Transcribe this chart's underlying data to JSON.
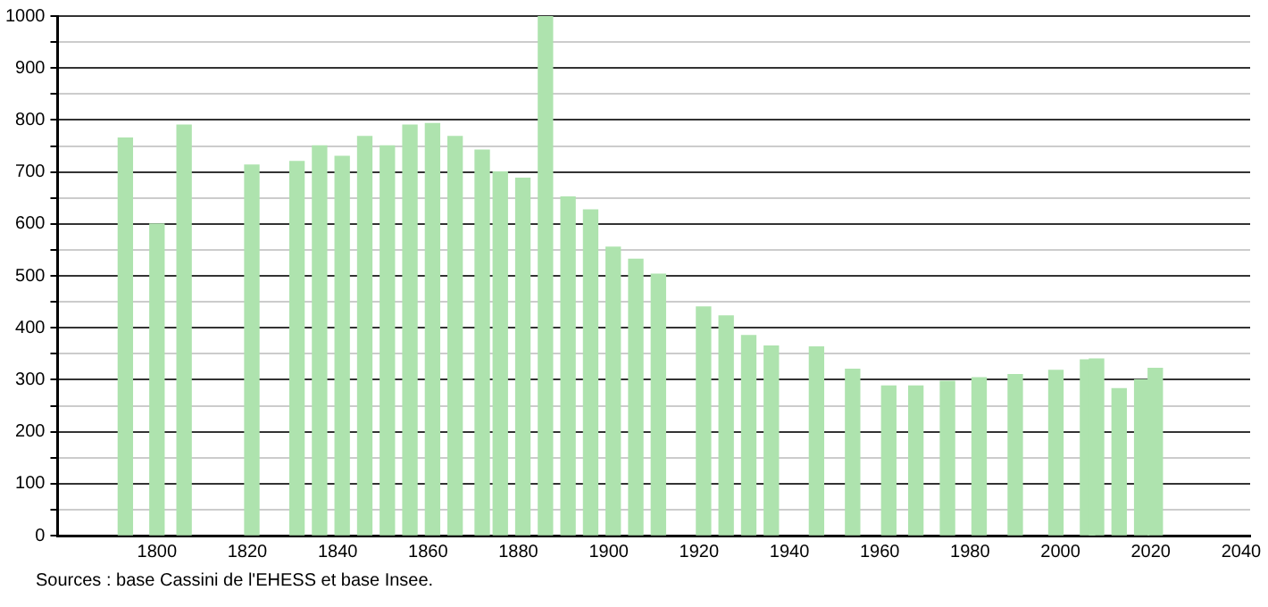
{
  "chart_data": {
    "type": "bar",
    "x": [
      1793,
      1800,
      1806,
      1821,
      1831,
      1836,
      1841,
      1846,
      1851,
      1856,
      1861,
      1866,
      1872,
      1876,
      1881,
      1886,
      1891,
      1896,
      1901,
      1906,
      1911,
      1921,
      1926,
      1931,
      1936,
      1946,
      1954,
      1962,
      1968,
      1975,
      1982,
      1990,
      1999,
      2006,
      2008,
      2013,
      2018,
      2021
    ],
    "values": [
      765,
      600,
      790,
      713,
      720,
      750,
      730,
      768,
      750,
      790,
      793,
      768,
      742,
      700,
      688,
      1000,
      652,
      627,
      555,
      532,
      503,
      440,
      423,
      385,
      365,
      363,
      320,
      288,
      288,
      297,
      304,
      310,
      318,
      338,
      340,
      283,
      300,
      322
    ],
    "color": "#aee3ae",
    "xlim": [
      1778,
      2042
    ],
    "xticks": [
      1800,
      1820,
      1840,
      1860,
      1880,
      1900,
      1920,
      1940,
      1960,
      1980,
      2000,
      2020,
      2040
    ],
    "ylim": [
      0,
      1000
    ],
    "yticks": [
      0,
      {
        "value": 50,
        "label": null
      },
      100,
      {
        "value": 150,
        "label": null
      },
      200,
      {
        "value": 250,
        "label": null
      },
      300,
      {
        "value": 350,
        "label": null
      },
      400,
      {
        "value": 450,
        "label": null
      },
      500,
      {
        "value": 550,
        "label": null
      },
      600,
      {
        "value": 650,
        "label": null
      },
      700,
      {
        "value": 750,
        "label": null
      },
      800,
      {
        "value": 850,
        "label": null
      },
      900,
      {
        "value": 950,
        "label": null
      },
      1000
    ],
    "grid": "y",
    "annotations": [
      "Sources : base Cassini de l'EHESS et base Insee."
    ]
  }
}
